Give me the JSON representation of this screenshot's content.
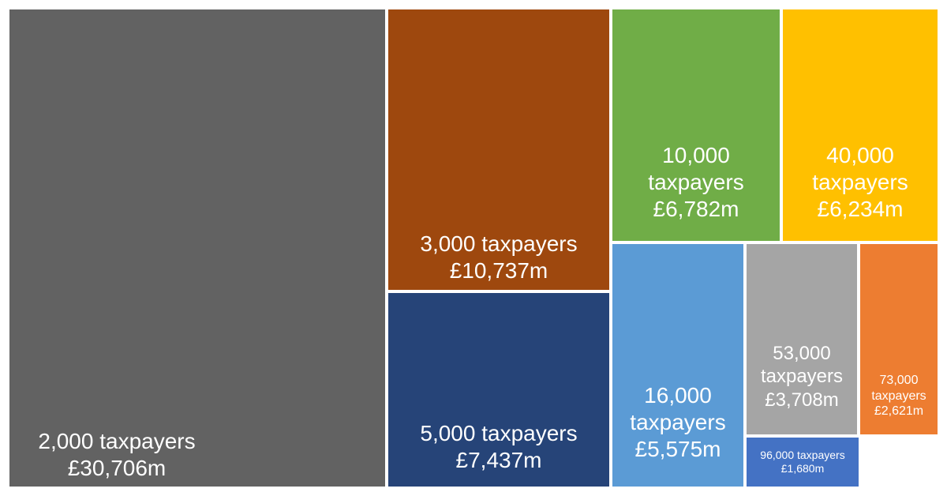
{
  "chart_data": {
    "type": "treemap",
    "items": [
      {
        "taxpayers": "2,000",
        "value": 30706,
        "label_count": "2,000 taxpayers",
        "label_value": "£30,706m",
        "color": "#626262"
      },
      {
        "taxpayers": "3,000",
        "value": 10737,
        "label_count": "3,000 taxpayers",
        "label_value": "£10,737m",
        "color": "#9E480E"
      },
      {
        "taxpayers": "5,000",
        "value": 7437,
        "label_count": "5,000 taxpayers",
        "label_value": "£7,437m",
        "color": "#264478"
      },
      {
        "taxpayers": "10,000",
        "value": 6782,
        "label_count": "10,000",
        "label_count2": "taxpayers",
        "label_value": "£6,782m",
        "color": "#70AD47"
      },
      {
        "taxpayers": "40,000",
        "value": 6234,
        "label_count": "40,000",
        "label_count2": "taxpayers",
        "label_value": "£6,234m",
        "color": "#FFC000"
      },
      {
        "taxpayers": "16,000",
        "value": 5575,
        "label_count": "16,000",
        "label_count2": "taxpayers",
        "label_value": "£5,575m",
        "color": "#5B9BD5"
      },
      {
        "taxpayers": "53,000",
        "value": 3708,
        "label_count": "53,000",
        "label_count2": "taxpayers",
        "label_value": "£3,708m",
        "color": "#A5A5A5"
      },
      {
        "taxpayers": "73,000",
        "value": 2621,
        "label_count": "73,000",
        "label_count2": "taxpayers",
        "label_value": "£2,621m",
        "color": "#ED7D31"
      },
      {
        "taxpayers": "96,000",
        "value": 1680,
        "label_count": "96,000 taxpayers",
        "label_value": "£1,680m",
        "color": "#4472C4"
      }
    ]
  }
}
